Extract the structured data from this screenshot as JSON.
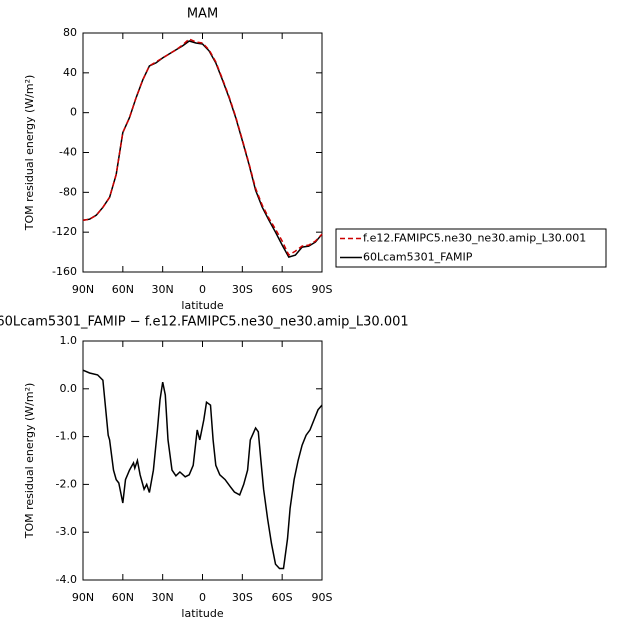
{
  "chart_data": [
    {
      "type": "line",
      "title": "MAM",
      "xlabel": "latitude",
      "ylabel": "TOM residual energy (W/m²)",
      "x": [
        90,
        85,
        80,
        75,
        70,
        65,
        60,
        55,
        50,
        45,
        40,
        35,
        30,
        25,
        20,
        15,
        10,
        5,
        0,
        -5,
        -10,
        -15,
        -20,
        -25,
        -30,
        -35,
        -40,
        -45,
        -50,
        -55,
        -60,
        -65,
        -70,
        -75,
        -80,
        -85,
        -90
      ],
      "series": [
        {
          "name": "f.e12.FAMIPC5.ne30_ne30.amip_L30.001",
          "color": "#cc0000",
          "linestyle": "dashed",
          "values": [
            -108,
            -107,
            -103,
            -95,
            -85,
            -62,
            -20,
            -5,
            15,
            33,
            47,
            51,
            55,
            59,
            63,
            68,
            74,
            71,
            70,
            63,
            51,
            34,
            16,
            -4,
            -27,
            -51,
            -76,
            -93,
            -106,
            -117,
            -129,
            -143,
            -139,
            -134,
            -133,
            -129,
            -122
          ]
        },
        {
          "name": "60Lcam5301_FAMIP",
          "color": "#000000",
          "linestyle": "solid",
          "values": [
            -108,
            -107,
            -103,
            -95,
            -85,
            -62,
            -20,
            -5,
            15,
            33,
            47,
            50,
            55,
            59,
            63,
            67,
            72,
            70,
            69,
            62,
            50,
            33,
            15,
            -5,
            -28,
            -52,
            -78,
            -95,
            -108,
            -120,
            -133,
            -145,
            -143,
            -135,
            -134,
            -130,
            -122
          ]
        }
      ],
      "xlim": [
        90,
        -90
      ],
      "xticks": [
        {
          "value": 90,
          "label": "90N"
        },
        {
          "value": 60,
          "label": "60N"
        },
        {
          "value": 30,
          "label": "30N"
        },
        0,
        {
          "value": -30,
          "label": "30S"
        },
        {
          "value": -60,
          "label": "60S"
        },
        {
          "value": -90,
          "label": "90S"
        }
      ],
      "ylim": [
        -160,
        80
      ],
      "yticks": [
        -160,
        -120,
        -80,
        -40,
        0,
        40,
        80
      ],
      "legend": "right"
    },
    {
      "type": "line",
      "title": "60Lcam5301_FAMIP − f.e12.FAMIPC5.ne30_ne30.amip_L30.001",
      "xlabel": "latitude",
      "ylabel": "TOM residual energy (W/m²)",
      "x": [
        90,
        85,
        79,
        75,
        71,
        70,
        67,
        65,
        63,
        60,
        58,
        55,
        52,
        51,
        49,
        47,
        44,
        42,
        40,
        37,
        34,
        32,
        30,
        28,
        26,
        23,
        20,
        17,
        13,
        10,
        7,
        4,
        2,
        -1,
        -3,
        -6,
        -8,
        -10,
        -13,
        -17,
        -21,
        -24,
        -28,
        -31,
        -34,
        -36,
        -40,
        -42,
        -44,
        -46,
        -49,
        -52,
        -55,
        -58,
        -61,
        -64,
        -66,
        -69,
        -72,
        -75,
        -78,
        -81,
        -84,
        -87,
        -90
      ],
      "series": [
        {
          "color": "#000000",
          "values": [
            0.39,
            0.33,
            0.29,
            0.18,
            -0.97,
            -1.07,
            -1.7,
            -1.9,
            -1.97,
            -2.39,
            -1.9,
            -1.7,
            -1.55,
            -1.66,
            -1.5,
            -1.8,
            -2.1,
            -2.0,
            -2.17,
            -1.7,
            -0.86,
            -0.23,
            0.14,
            -0.13,
            -1.07,
            -1.7,
            -1.82,
            -1.74,
            -1.84,
            -1.8,
            -1.6,
            -0.86,
            -1.07,
            -0.65,
            -0.28,
            -0.34,
            -1.07,
            -1.6,
            -1.8,
            -1.9,
            -2.05,
            -2.16,
            -2.22,
            -2.0,
            -1.7,
            -1.07,
            -0.82,
            -0.9,
            -1.5,
            -2.1,
            -2.72,
            -3.24,
            -3.67,
            -3.76,
            -3.76,
            -3.14,
            -2.5,
            -1.9,
            -1.5,
            -1.18,
            -0.97,
            -0.86,
            -0.65,
            -0.44,
            -0.34
          ]
        }
      ],
      "xlim": [
        90,
        -90
      ],
      "xticks": [
        {
          "value": 90,
          "label": "90N"
        },
        {
          "value": 60,
          "label": "60N"
        },
        {
          "value": 30,
          "label": "30N"
        },
        0,
        {
          "value": -30,
          "label": "30S"
        },
        {
          "value": -60,
          "label": "60S"
        },
        {
          "value": -90,
          "label": "90S"
        }
      ],
      "ylim": [
        -4,
        1
      ],
      "yticks": [
        {
          "value": -4,
          "label": "-4.0"
        },
        {
          "value": -3,
          "label": "-3.0"
        },
        {
          "value": -2,
          "label": "-2.0"
        },
        {
          "value": -1,
          "label": "-1.0"
        },
        {
          "value": 0,
          "label": "0.0"
        },
        {
          "value": 1,
          "label": "1.0"
        }
      ]
    }
  ]
}
